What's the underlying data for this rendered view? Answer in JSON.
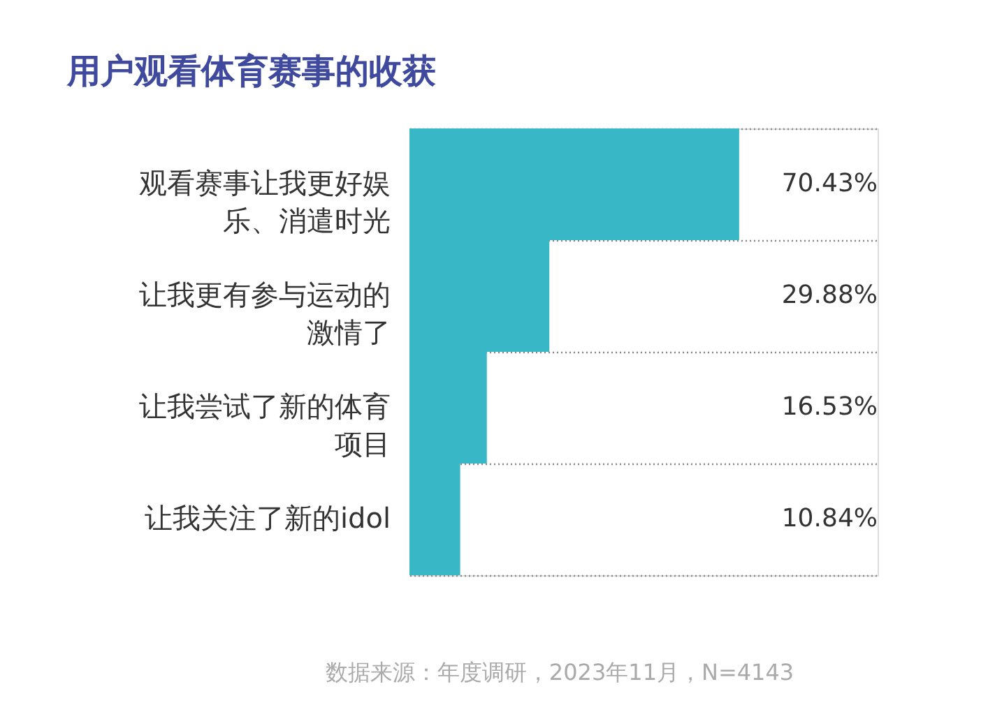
{
  "chart_data": {
    "type": "bar",
    "orientation": "horizontal",
    "title": "用户观看体育赛事的收获",
    "categories": [
      "观看赛事让我更好娱乐、消遣时光",
      "让我更有参与运动的激情了",
      "让我尝试了新的体育项目",
      "让我关注了新的idol"
    ],
    "values": [
      70.43,
      29.88,
      16.53,
      10.84
    ],
    "value_labels": [
      "70.43%",
      "29.88%",
      "16.53%",
      "10.84%"
    ],
    "color": "#38b8c6",
    "xlim": [
      0,
      100
    ],
    "grid": "y",
    "tick_labels": "y",
    "annotations": [
      "数据来源：年度调研，2023年11月，N=4143"
    ]
  }
}
